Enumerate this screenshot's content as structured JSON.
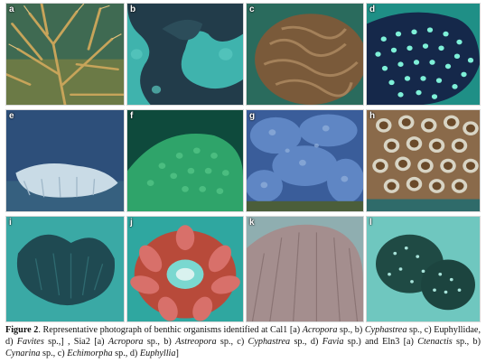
{
  "panels": [
    {
      "id": "a",
      "label": "a"
    },
    {
      "id": "b",
      "label": "b"
    },
    {
      "id": "c",
      "label": "c"
    },
    {
      "id": "d",
      "label": "d"
    },
    {
      "id": "e",
      "label": "e"
    },
    {
      "id": "f",
      "label": "f"
    },
    {
      "id": "g",
      "label": "g"
    },
    {
      "id": "h",
      "label": "h"
    },
    {
      "id": "i",
      "label": "i"
    },
    {
      "id": "j",
      "label": "j"
    },
    {
      "id": "k",
      "label": "k"
    },
    {
      "id": "l",
      "label": "l"
    }
  ],
  "caption": {
    "figure_label": "Figure 2",
    "segments": [
      {
        "t": ". Representative photograph of benthic organisms identified at Cal1 [a) ",
        "s": "n"
      },
      {
        "t": "Acropora",
        "s": "i"
      },
      {
        "t": " sp., b) ",
        "s": "n"
      },
      {
        "t": "Cyphastrea",
        "s": "i"
      },
      {
        "t": "  sp., c) Euphyllidae, d) ",
        "s": "n"
      },
      {
        "t": "Favites",
        "s": "i"
      },
      {
        "t": " sp.,] , Sia2 [a) ",
        "s": "n"
      },
      {
        "t": "Acropora",
        "s": "i"
      },
      {
        "t": " sp., b) ",
        "s": "n"
      },
      {
        "t": "Astreopora",
        "s": "i"
      },
      {
        "t": " sp., c) ",
        "s": "n"
      },
      {
        "t": "Cyphastrea",
        "s": "i"
      },
      {
        "t": " sp., d) ",
        "s": "n"
      },
      {
        "t": "Favia",
        "s": "i"
      },
      {
        "t": " sp.) and Eln3 [a) ",
        "s": "n"
      },
      {
        "t": "Ctenactis",
        "s": "i"
      },
      {
        "t": " sp., b) ",
        "s": "n"
      },
      {
        "t": "Cynarina",
        "s": "i"
      },
      {
        "t": " sp., c) ",
        "s": "n"
      },
      {
        "t": "Echimorpha",
        "s": "i"
      },
      {
        "t": " sp., d) ",
        "s": "n"
      },
      {
        "t": "Euphyllia",
        "s": "i"
      },
      {
        "t": "]",
        "s": "n"
      }
    ]
  }
}
